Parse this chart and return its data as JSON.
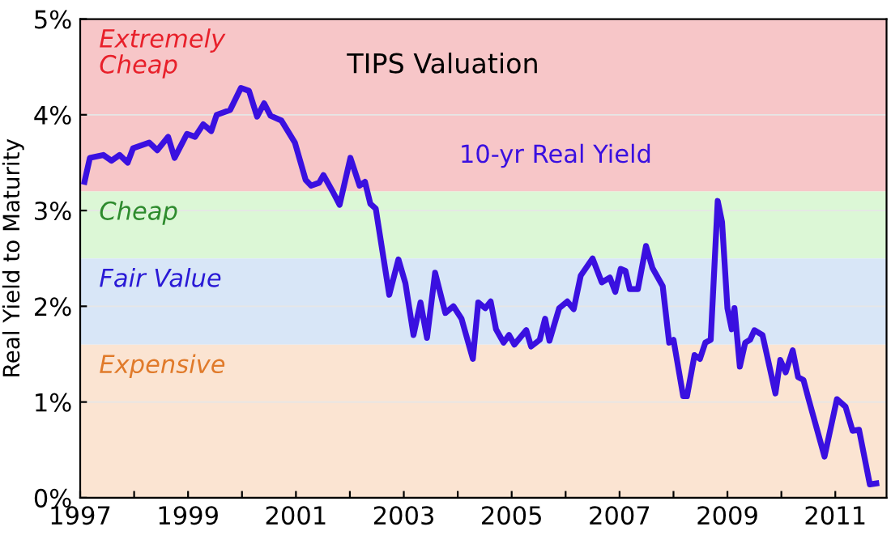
{
  "chart_data": {
    "type": "line",
    "title": "TIPS Valuation",
    "ylabel": "Real Yield to Maturity",
    "xlim": [
      1997,
      2011.95
    ],
    "ylim": [
      0,
      5
    ],
    "xticks": [
      1997,
      {
        "value": 1998,
        "label": null
      },
      1999,
      {
        "value": 2000,
        "label": null
      },
      2001,
      {
        "value": 2002,
        "label": null
      },
      2003,
      {
        "value": 2004,
        "label": null
      },
      2005,
      {
        "value": 2006,
        "label": null
      },
      2007,
      {
        "value": 2008,
        "label": null
      },
      2009,
      {
        "value": 2010,
        "label": null
      },
      2011
    ],
    "yticks": [
      {
        "value": 0,
        "label": "0%"
      },
      {
        "value": 1,
        "label": "1%"
      },
      {
        "value": 2,
        "label": "2%"
      },
      {
        "value": 3,
        "label": "3%"
      },
      {
        "value": 4,
        "label": "4%"
      },
      {
        "value": 5,
        "label": "5%"
      }
    ],
    "grid": "y",
    "legend": false,
    "marker": "none",
    "line_style": "solid",
    "bands": [
      {
        "axis": "y",
        "from": 3.2,
        "to": 5,
        "label": "Extremely\nCheap",
        "color": "#f7c6c8"
      },
      {
        "axis": "y",
        "from": 2.5,
        "to": 3.2,
        "label": "Cheap",
        "color": "#dcf7d6"
      },
      {
        "axis": "y",
        "from": 1.6,
        "to": 2.5,
        "label": "Fair Value",
        "color": "#d8e6f7"
      },
      {
        "axis": "y",
        "from": 0,
        "to": 1.6,
        "label": "Expensive",
        "color": "#fbe4d2"
      }
    ],
    "series": [
      {
        "name": "10-yr Real Yield",
        "color": "#3a10e0",
        "x": [
          1997.08,
          1997.18,
          1997.43,
          1997.58,
          1997.73,
          1997.88,
          1997.98,
          1998.28,
          1998.43,
          1998.63,
          1998.75,
          1998.98,
          1999.13,
          1999.28,
          1999.43,
          1999.53,
          1999.78,
          1999.98,
          2000.13,
          2000.28,
          2000.41,
          2000.53,
          2000.73,
          2000.98,
          2001.18,
          2001.28,
          2001.43,
          2001.51,
          2001.68,
          2001.81,
          2002.01,
          2002.18,
          2002.28,
          2002.38,
          2002.48,
          2002.73,
          2002.9,
          2003.03,
          2003.18,
          2003.31,
          2003.43,
          2003.58,
          2003.77,
          2003.92,
          2004.07,
          2004.28,
          2004.38,
          2004.51,
          2004.61,
          2004.71,
          2004.85,
          2004.95,
          2005.05,
          2005.27,
          2005.36,
          2005.52,
          2005.62,
          2005.7,
          2005.88,
          2006.03,
          2006.15,
          2006.28,
          2006.5,
          2006.67,
          2006.82,
          2006.92,
          2007.02,
          2007.11,
          2007.19,
          2007.34,
          2007.49,
          2007.61,
          2007.8,
          2007.92,
          2008.0,
          2008.18,
          2008.25,
          2008.39,
          2008.49,
          2008.59,
          2008.69,
          2008.82,
          2008.9,
          2009.0,
          2009.08,
          2009.13,
          2009.23,
          2009.33,
          2009.42,
          2009.5,
          2009.65,
          2009.89,
          2009.98,
          2010.08,
          2010.21,
          2010.31,
          2010.41,
          2010.5,
          2010.8,
          2011.03,
          2011.19,
          2011.32,
          2011.44,
          2011.64,
          2011.76
        ],
        "values": [
          3.3,
          3.55,
          3.58,
          3.52,
          3.58,
          3.5,
          3.65,
          3.71,
          3.63,
          3.77,
          3.55,
          3.8,
          3.77,
          3.9,
          3.83,
          4.0,
          4.05,
          4.28,
          4.25,
          3.98,
          4.12,
          3.99,
          3.94,
          3.71,
          3.32,
          3.26,
          3.29,
          3.37,
          3.2,
          3.06,
          3.55,
          3.26,
          3.3,
          3.07,
          3.02,
          2.12,
          2.49,
          2.24,
          1.7,
          2.04,
          1.67,
          2.35,
          1.93,
          2.0,
          1.87,
          1.45,
          2.04,
          1.98,
          2.05,
          1.76,
          1.62,
          1.7,
          1.6,
          1.75,
          1.58,
          1.65,
          1.87,
          1.64,
          1.98,
          2.05,
          1.97,
          2.32,
          2.5,
          2.25,
          2.3,
          2.15,
          2.39,
          2.37,
          2.18,
          2.18,
          2.63,
          2.4,
          2.21,
          1.62,
          1.65,
          1.06,
          1.06,
          1.49,
          1.45,
          1.62,
          1.65,
          3.1,
          2.88,
          1.98,
          1.76,
          1.98,
          1.37,
          1.62,
          1.65,
          1.75,
          1.7,
          1.09,
          1.44,
          1.31,
          1.54,
          1.26,
          1.23,
          1.04,
          0.43,
          1.03,
          0.95,
          0.7,
          0.71,
          0.14,
          0.15
        ]
      }
    ]
  }
}
